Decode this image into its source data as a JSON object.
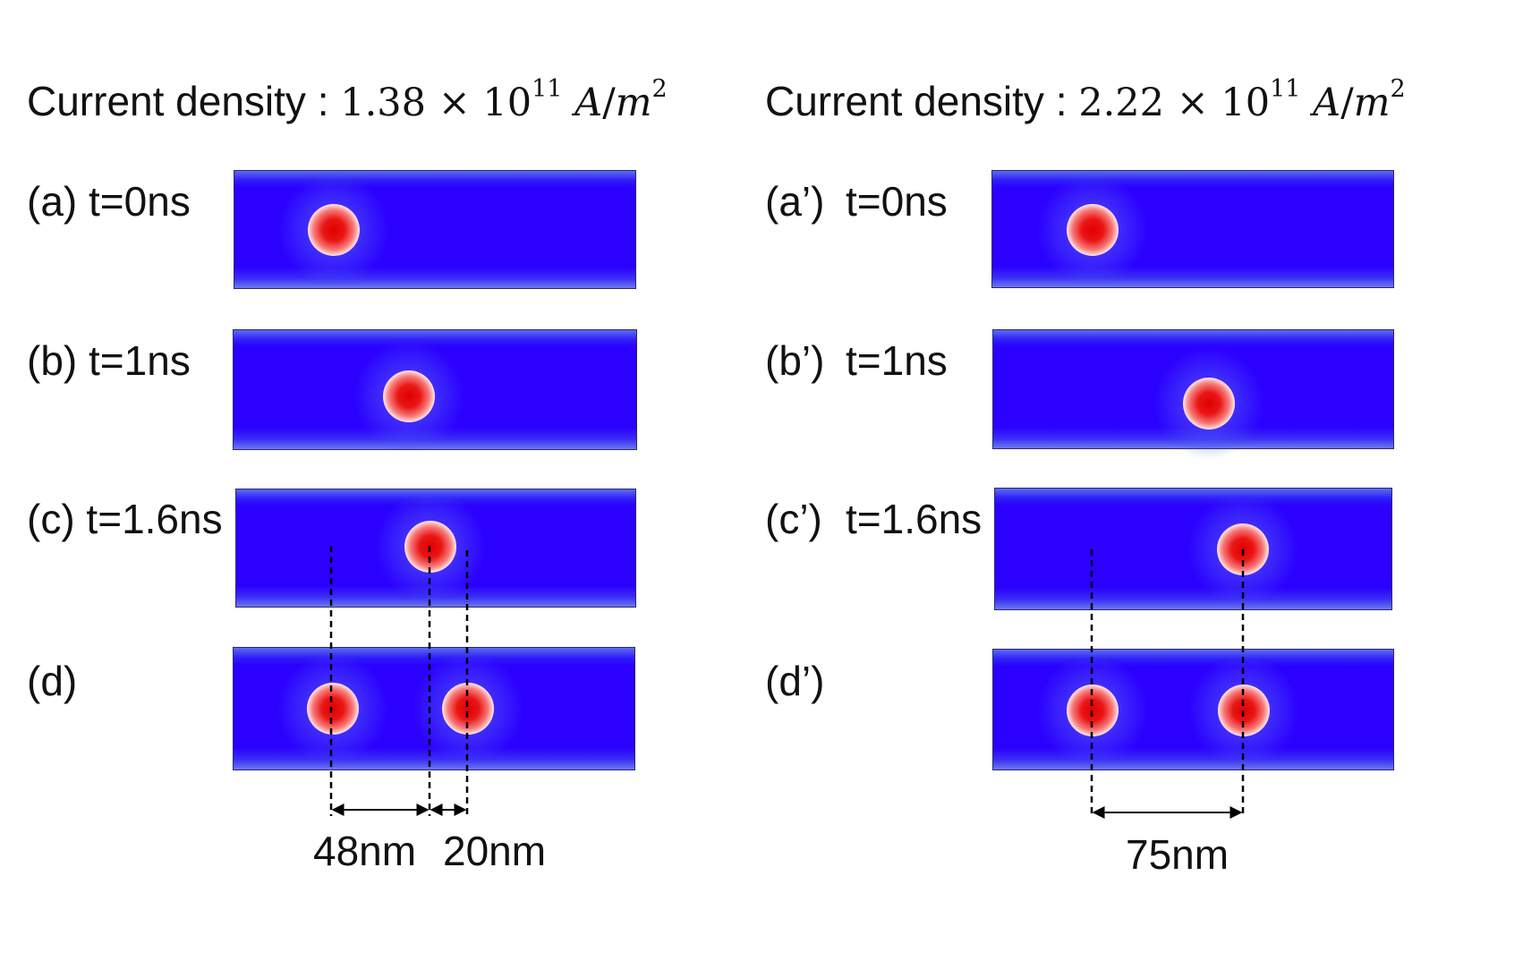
{
  "left": {
    "title": {
      "text": "Current density : ",
      "mantissa": "1.38",
      "times": "×",
      "base": "10",
      "exponent": "11",
      "unit_num": "A",
      "slash": "/",
      "unit_den": "m",
      "unit_exp": "2"
    },
    "rows": [
      {
        "label": "(a)",
        "time": "t=0ns"
      },
      {
        "label": "(b)",
        "time": "t=1ns"
      },
      {
        "label": "(c)",
        "time": "t=1.6ns"
      },
      {
        "label": "(d)",
        "time": ""
      }
    ],
    "dimensions": {
      "first": "48nm",
      "second": "20nm"
    }
  },
  "right": {
    "title": {
      "text": "Current density : ",
      "mantissa": "2.22",
      "times": "×",
      "base": "10",
      "exponent": "11",
      "unit_num": "A",
      "slash": "/",
      "unit_den": "m",
      "unit_exp": "2"
    },
    "rows": [
      {
        "label": "(a’)",
        "time": "t=0ns"
      },
      {
        "label": "(b’)",
        "time": "t=1ns"
      },
      {
        "label": "(c’)",
        "time": "t=1.6ns"
      },
      {
        "label": "(d’)",
        "time": ""
      }
    ],
    "dimensions": {
      "first": "75nm"
    }
  },
  "colors": {
    "track": "#2b00ff",
    "core": "#e00000",
    "ring": "#ffffff",
    "guide": "#000000"
  }
}
